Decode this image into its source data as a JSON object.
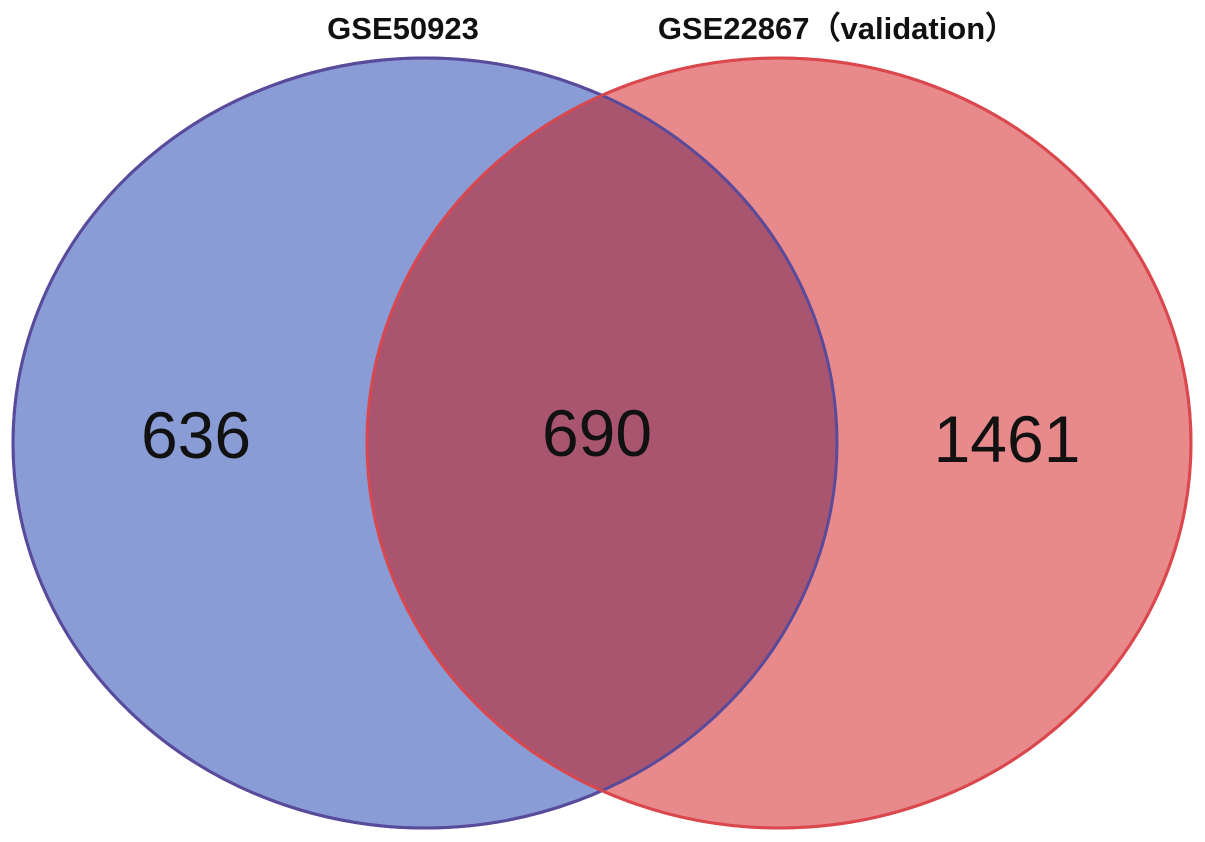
{
  "venn": {
    "sets": [
      {
        "label": "GSE50923",
        "color": "#8a9cd6",
        "stroke": "#4a60c8"
      },
      {
        "label": "GSE22867（validation）",
        "color": "#e88a8c",
        "stroke": "#d9484e"
      }
    ],
    "overlap_color": "#a9556f",
    "counts": {
      "left_only": "636",
      "intersection": "690",
      "right_only": "1461"
    }
  }
}
